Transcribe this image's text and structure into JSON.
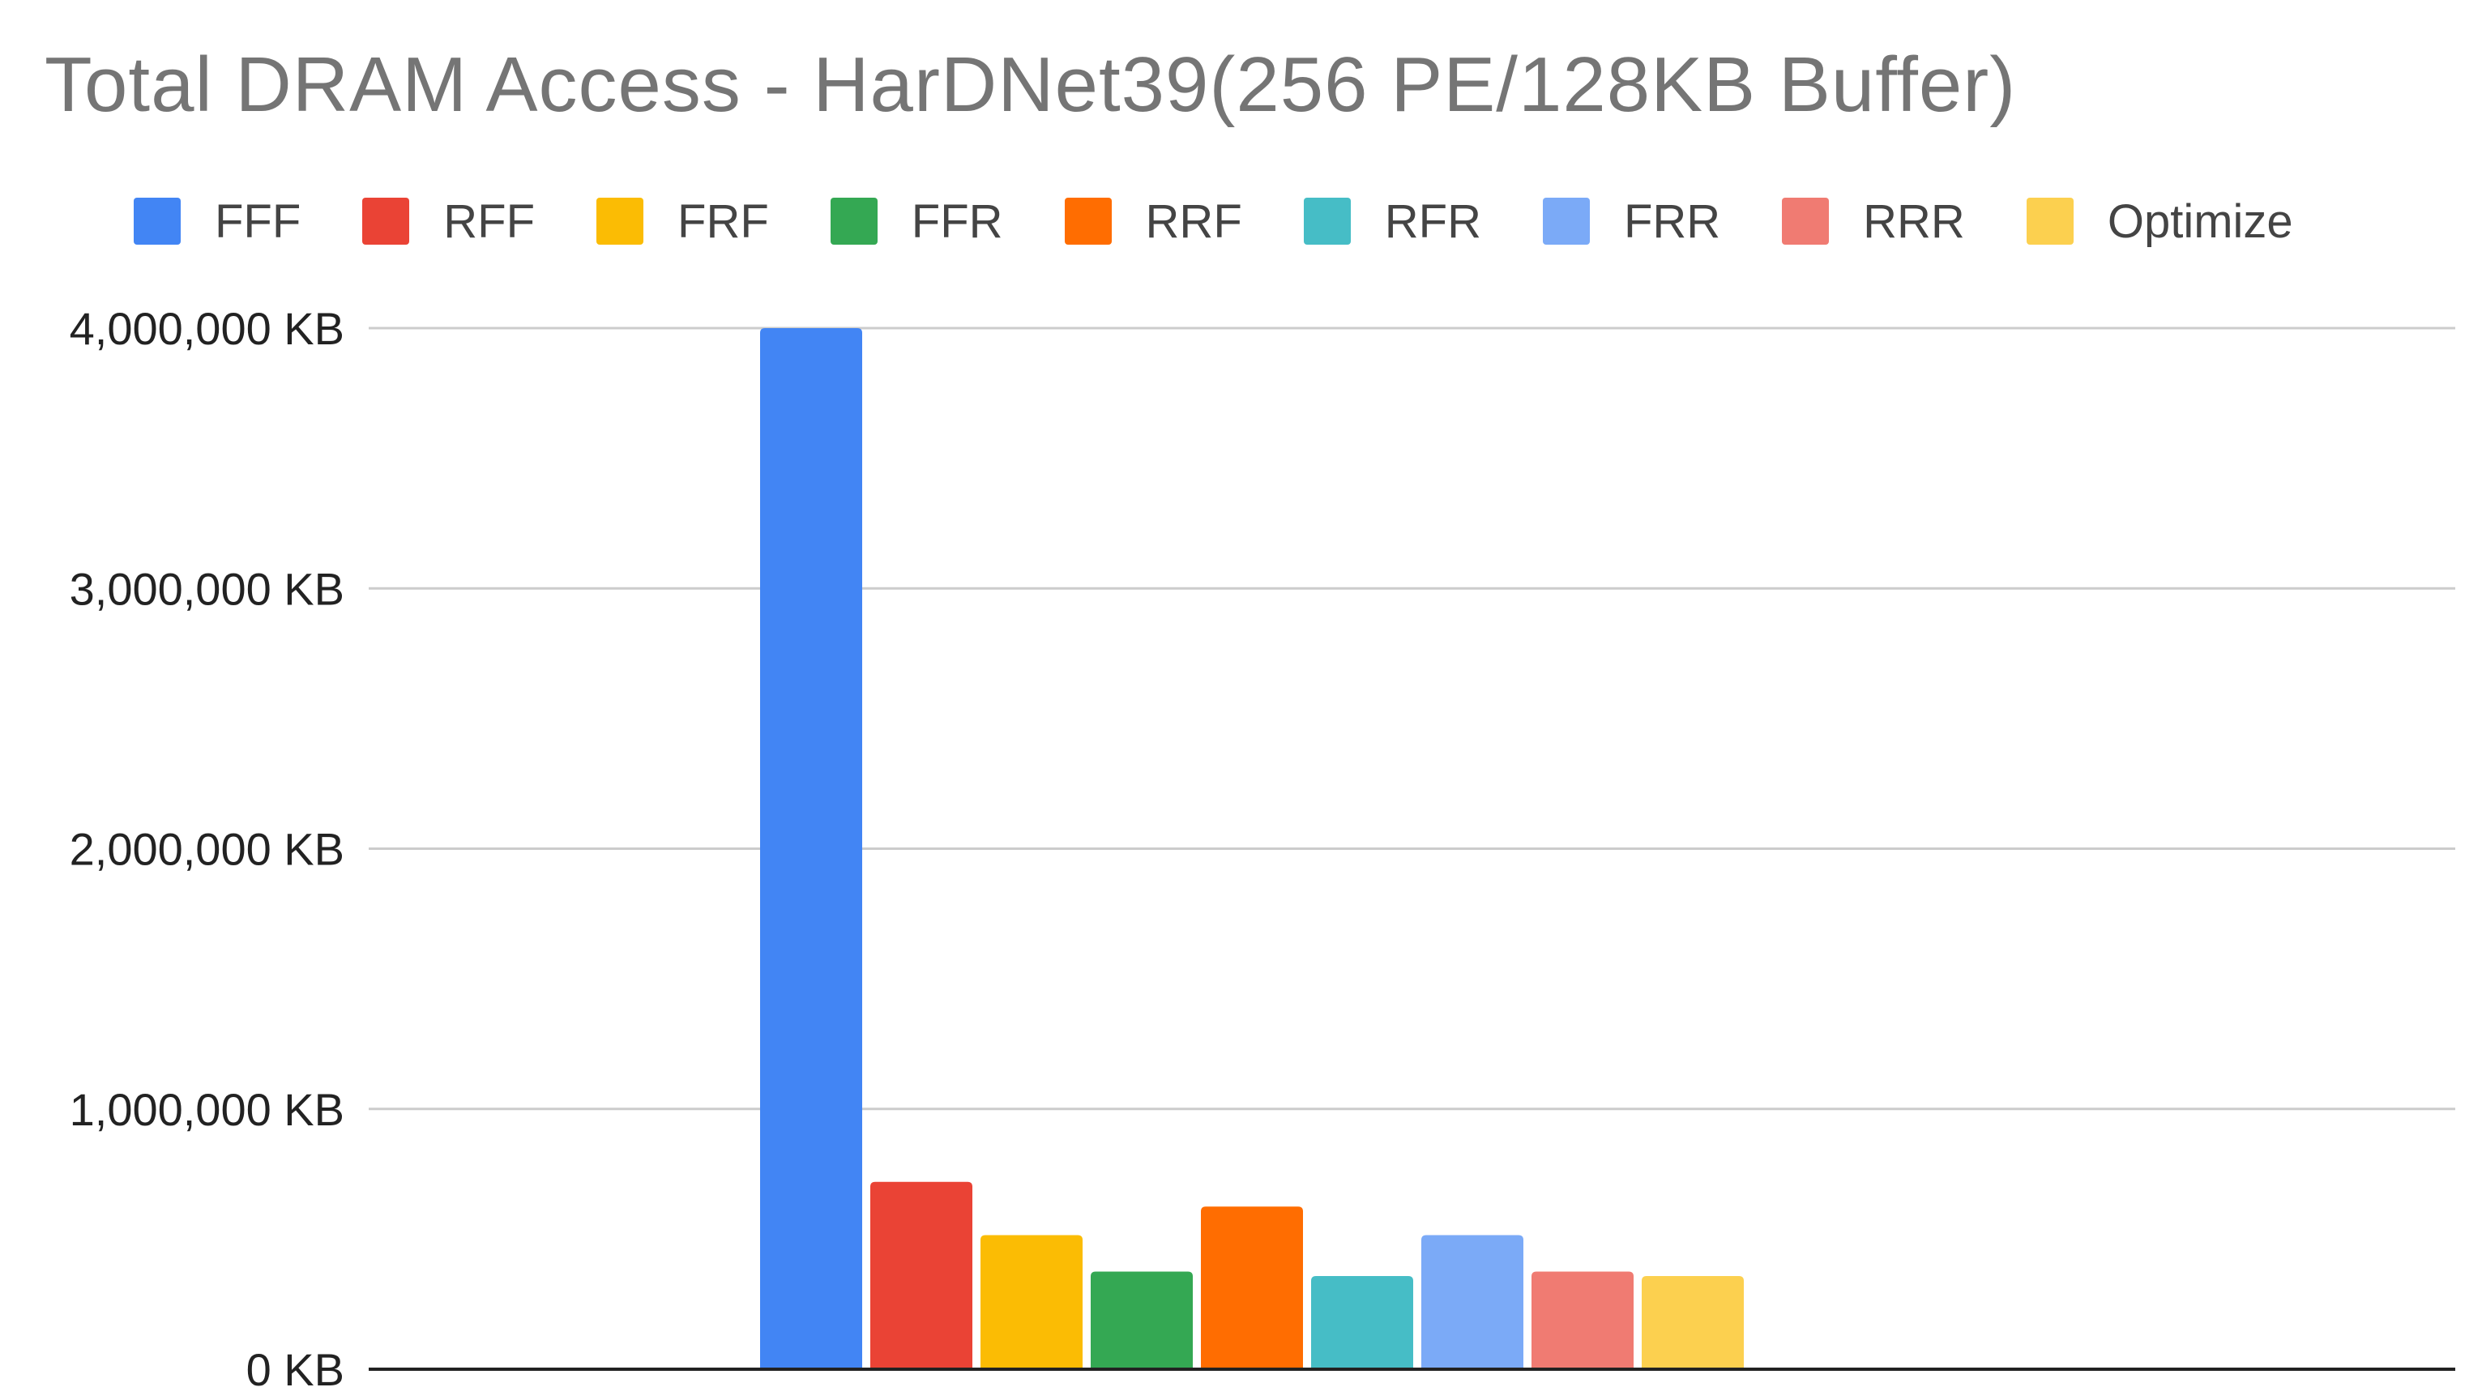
{
  "chart_data": {
    "type": "bar",
    "title": "Total DRAM Access - HarDNet39(256 PE/128KB Buffer)",
    "xlabel": "",
    "ylabel": "",
    "ylim": [
      0,
      4000000
    ],
    "yticks": [
      {
        "value": 0,
        "label": "0 KB"
      },
      {
        "value": 1000000,
        "label": "1,000,000 KB"
      },
      {
        "value": 2000000,
        "label": "2,000,000 KB"
      },
      {
        "value": 3000000,
        "label": "3,000,000 KB"
      },
      {
        "value": 4000000,
        "label": "4,000,000 KB"
      }
    ],
    "grid": true,
    "legend_position": "top",
    "series": [
      {
        "name": "FFF",
        "color": "#4285f4",
        "values": [
          4000000
        ]
      },
      {
        "name": "RFF",
        "color": "#ea4335",
        "values": [
          720000
        ]
      },
      {
        "name": "FRF",
        "color": "#fbbc04",
        "values": [
          515000
        ]
      },
      {
        "name": "FFR",
        "color": "#34a853",
        "values": [
          375000
        ]
      },
      {
        "name": "RRF",
        "color": "#ff6d01",
        "values": [
          625000
        ]
      },
      {
        "name": "RFR",
        "color": "#46bdc6",
        "values": [
          358000
        ]
      },
      {
        "name": "FRR",
        "color": "#7baaf7",
        "values": [
          515000
        ]
      },
      {
        "name": "RRR",
        "color": "#f07b72",
        "values": [
          375000
        ]
      },
      {
        "name": "Optimize",
        "color": "#fcd04f",
        "values": [
          358000
        ]
      }
    ]
  }
}
